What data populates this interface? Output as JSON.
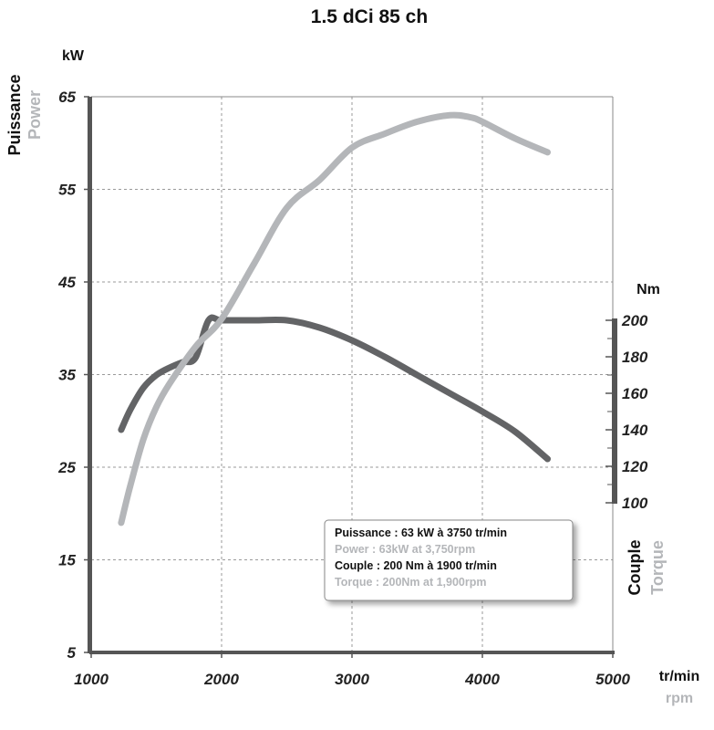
{
  "chart_data": {
    "type": "line",
    "title": "1.5 dCi 85 ch",
    "x_axis": {
      "label": "tr/min",
      "label_secondary": "rpm",
      "range": [
        1000,
        5000
      ],
      "ticks": [
        "1000",
        "2000",
        "3000",
        "4000",
        "5000"
      ],
      "grid": true
    },
    "y_axis_left": {
      "unit": "kW",
      "title": "Puissance",
      "title_secondary": "Power",
      "range": [
        5,
        65
      ],
      "ticks": [
        "65",
        "55",
        "45",
        "35",
        "25",
        "15",
        "5"
      ],
      "grid": true
    },
    "y_axis_right": {
      "unit": "Nm",
      "title": "Couple",
      "title_secondary": "Torque",
      "range": [
        100,
        200
      ],
      "ticks": [
        "200",
        "180",
        "160",
        "140",
        "120",
        "100"
      ]
    },
    "series": [
      {
        "name": "Couple",
        "axis": "right",
        "color": "#636466",
        "x": [
          1230,
          1300,
          1400,
          1500,
          1600,
          1700,
          1800,
          1900,
          2000,
          2250,
          2500,
          2750,
          3000,
          3250,
          3500,
          3750,
          4000,
          4250,
          4500
        ],
        "y": [
          140,
          151,
          163,
          170,
          174,
          177,
          179.5,
          200,
          200,
          200,
          200,
          196,
          189,
          180,
          170,
          160,
          150,
          139,
          124
        ]
      },
      {
        "name": "Puissance",
        "axis": "left",
        "color": "#b4b6b9",
        "x": [
          1230,
          1300,
          1400,
          1500,
          1600,
          1800,
          2000,
          2250,
          2500,
          2750,
          3000,
          3250,
          3500,
          3750,
          3900,
          4000,
          4250,
          4500
        ],
        "y": [
          19,
          23,
          28,
          31.5,
          34,
          38,
          41,
          47,
          53,
          56,
          59.5,
          61,
          62.3,
          63,
          62.8,
          62.3,
          60.5,
          59
        ]
      }
    ],
    "legend": {
      "position": "bottom-right",
      "lines": [
        {
          "text": "Puissance : 63 kW à 3750 tr/min",
          "color": "#111111"
        },
        {
          "text": "Power : 63kW at 3,750rpm",
          "color": "#b4b6b9"
        },
        {
          "text": "Couple : 200 Nm à 1900 tr/min",
          "color": "#111111"
        },
        {
          "text": "Torque : 200Nm at 1,900rpm",
          "color": "#b4b6b9"
        }
      ]
    },
    "colors": {
      "torque": "#636466",
      "power": "#b4b6b9",
      "axis": "#555555",
      "grid": "#9a9a9a"
    }
  }
}
